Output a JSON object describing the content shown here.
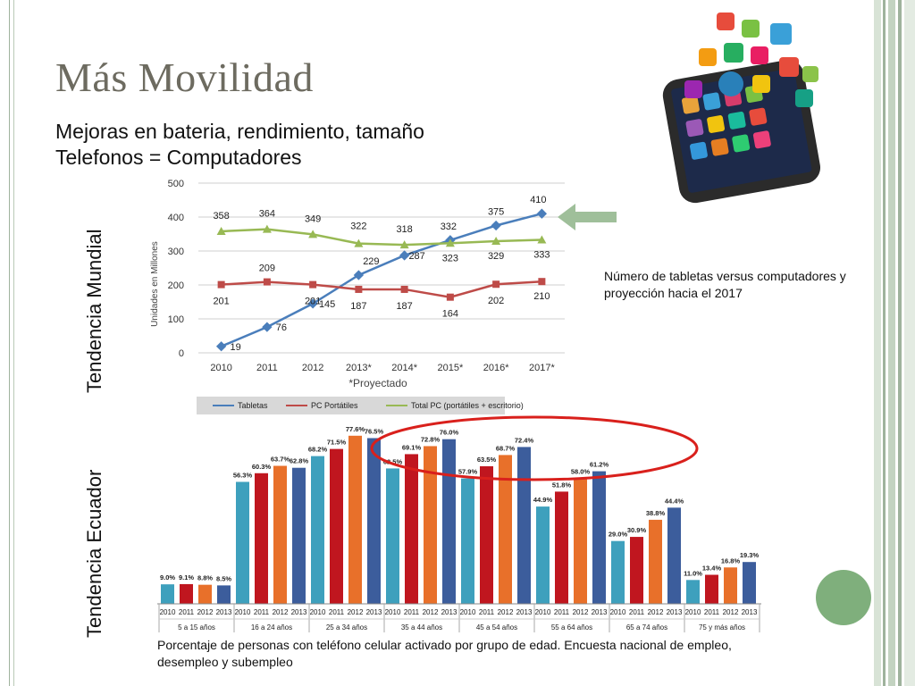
{
  "slide": {
    "title": "Más Movilidad",
    "bullets": [
      "Mejoras en bateria, rendimiento, tamaño",
      "Telefonos = Computadores"
    ],
    "side_labels": {
      "mundial": "Tendencia Mundial",
      "ecuador": "Tendencia Ecuador"
    },
    "note_world": "Número de tabletas versus computadores y proyección hacia el 2017",
    "note_ecuador": "Porcentaje de personas con teléfono celular activado por grupo de edad. Encuesta nacional de empleo, desempleo y subempleo",
    "accent_green": "#7faf7c"
  },
  "chart_data": [
    {
      "type": "line",
      "categories": [
        "2010",
        "2011",
        "2012",
        "2013*",
        "2014*",
        "2015*",
        "2016*",
        "2017*"
      ],
      "ylabel": "Unidades en Millones",
      "xnote": "*Proyectado",
      "ylim": [
        0,
        500
      ],
      "yticks": [
        0,
        100,
        200,
        300,
        400,
        500
      ],
      "grid": true,
      "legend_position": "bottom",
      "series": [
        {
          "name": "Tabletas",
          "color": "#4a7ebb",
          "values": [
            19,
            76,
            145,
            229,
            287,
            332,
            375,
            410
          ],
          "labels": [
            "19",
            "76",
            "145",
            "229",
            "287",
            "332",
            "375",
            "410"
          ]
        },
        {
          "name": "PC Portátiles",
          "color": "#be4b48",
          "values": [
            201,
            209,
            201,
            187,
            187,
            164,
            202,
            210
          ],
          "labels": [
            "201",
            "209",
            "201",
            "187",
            "187",
            "164",
            "202",
            "210"
          ]
        },
        {
          "name": "Total PC (portátiles + escritorio)",
          "color": "#98b954",
          "values": [
            358,
            364,
            349,
            322,
            318,
            323,
            329,
            333
          ],
          "labels": [
            "358",
            "364",
            "349",
            "322",
            "318",
            "323",
            "329",
            "333"
          ]
        }
      ]
    },
    {
      "type": "bar",
      "groups": [
        "5 a 15 años",
        "16 a 24 años",
        "25 a 34 años",
        "35 a 44 años",
        "45 a 54 años",
        "55 a 64 años",
        "65 a 74 años",
        "75 y más años"
      ],
      "years": [
        "2010",
        "2011",
        "2012",
        "2013"
      ],
      "year_colors": [
        "#3ea0bd",
        "#c0161f",
        "#e8702a",
        "#3c5d9c"
      ],
      "values": [
        [
          9.0,
          9.1,
          8.8,
          8.5
        ],
        [
          56.3,
          60.3,
          63.7,
          62.8
        ],
        [
          68.2,
          71.5,
          77.6,
          76.5
        ],
        [
          62.5,
          69.1,
          72.8,
          76.0
        ],
        [
          57.9,
          63.5,
          68.7,
          72.4
        ],
        [
          44.9,
          51.8,
          58.0,
          61.2
        ],
        [
          29.0,
          30.9,
          38.8,
          44.4
        ],
        [
          11.0,
          13.4,
          16.8,
          19.3
        ]
      ],
      "labels": [
        [
          "9.0%",
          "9.1%",
          "8.8%",
          "8.5%"
        ],
        [
          "56.3%",
          "60.3%",
          "63.7%",
          "62.8%"
        ],
        [
          "68.2%",
          "71.5%",
          "77.6%",
          "76.5%"
        ],
        [
          "62.5%",
          "69.1%",
          "72.8%",
          "76.0%"
        ],
        [
          "57.9%",
          "63.5%",
          "68.7%",
          "72.4%"
        ],
        [
          "44.9%",
          "51.8%",
          "58.0%",
          "61.2%"
        ],
        [
          "29.0%",
          "30.9%",
          "38.8%",
          "44.4%"
        ],
        [
          "11.0%",
          "13.4%",
          "16.8%",
          "19.3%"
        ]
      ],
      "ylim": [
        0,
        80
      ],
      "highlight": [
        "25 a 34 años",
        "35 a 44 años",
        "45 a 54 años"
      ],
      "highlight_color": "#d9201c"
    }
  ]
}
